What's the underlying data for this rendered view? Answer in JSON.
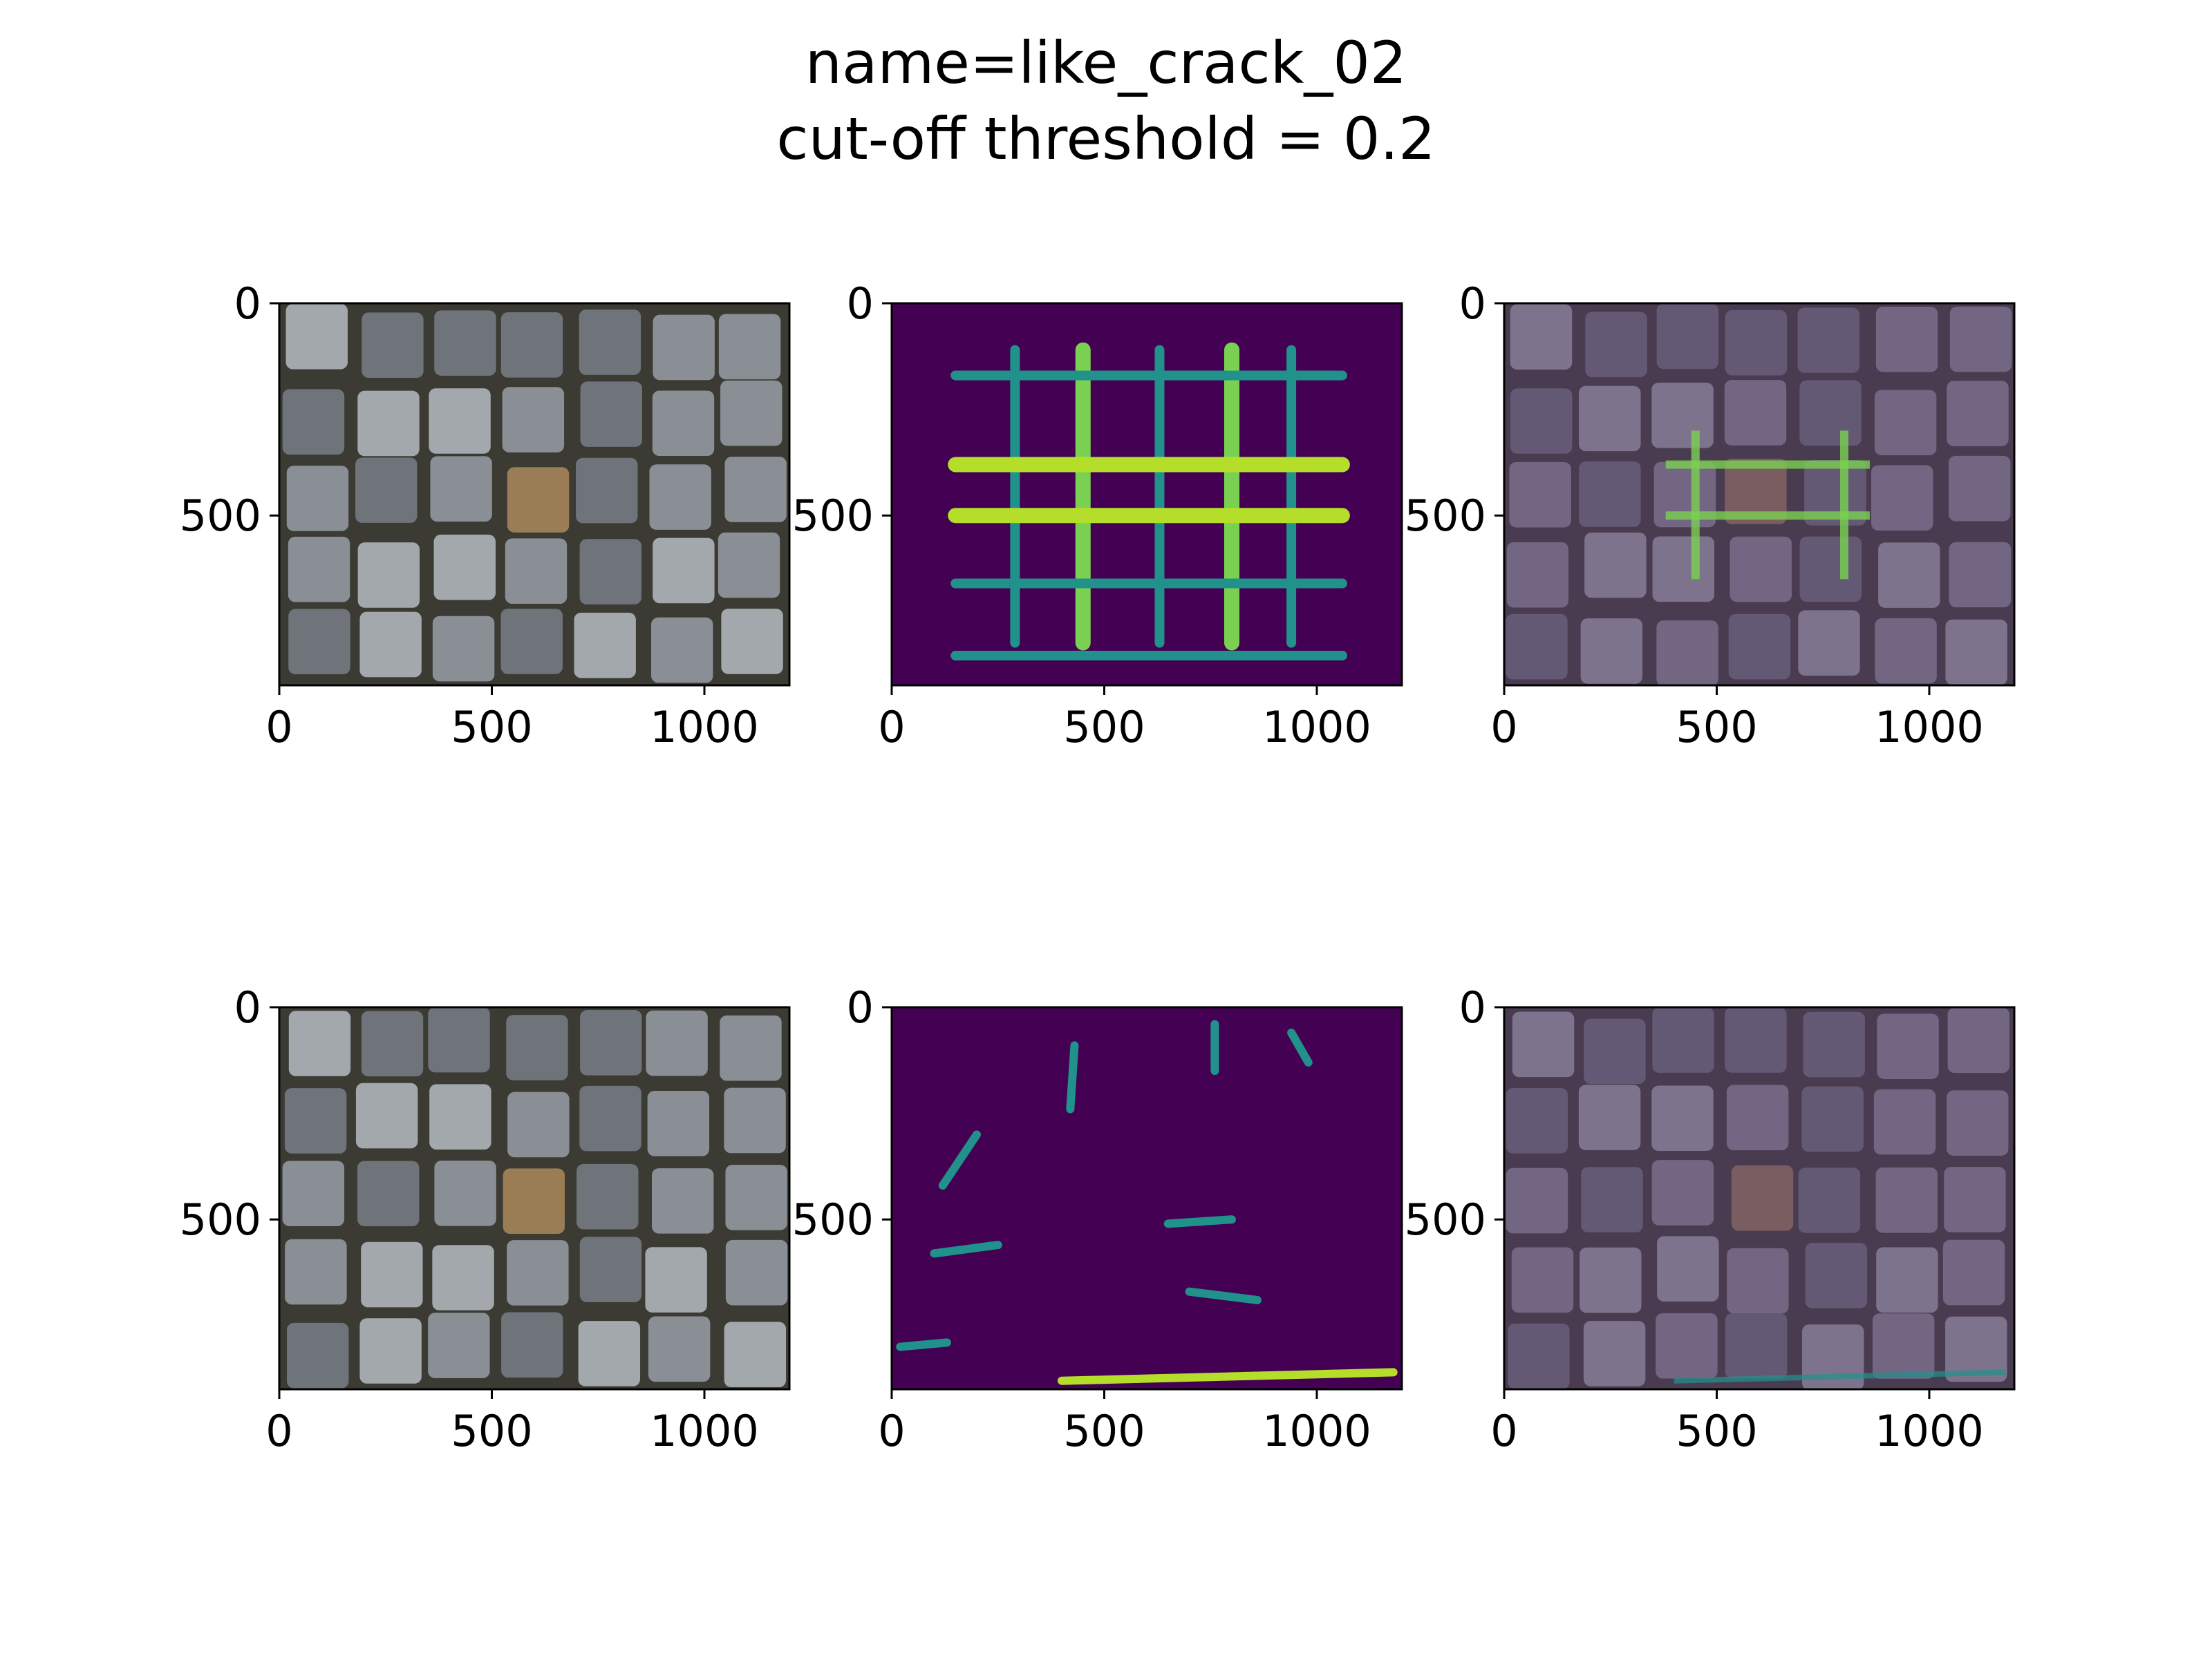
{
  "figure": {
    "title_line1": "name=like_crack_02",
    "title_line2": "cut-off threshold = 0.2"
  },
  "chart_data": {
    "type": "heatmap",
    "layout": "2 rows x 3 columns of image panels",
    "panels": [
      {
        "row": 1,
        "col": 1,
        "kind": "photo",
        "xticks": [
          "0",
          "500",
          "1000"
        ],
        "yticks": [
          "0",
          "500"
        ],
        "xlim": [
          0,
          1200
        ],
        "ylim": [
          900,
          0
        ]
      },
      {
        "row": 1,
        "col": 2,
        "kind": "heatmap",
        "colormap": "viridis",
        "xticks": [
          "0",
          "500",
          "1000"
        ],
        "yticks": [
          "0",
          "500"
        ],
        "xlim": [
          0,
          1200
        ],
        "ylim": [
          900,
          0
        ]
      },
      {
        "row": 1,
        "col": 3,
        "kind": "overlay",
        "xticks": [
          "0",
          "500",
          "1000"
        ],
        "yticks": [
          "0",
          "500"
        ],
        "xlim": [
          0,
          1200
        ],
        "ylim": [
          900,
          0
        ]
      },
      {
        "row": 2,
        "col": 1,
        "kind": "photo",
        "xticks": [
          "0",
          "500",
          "1000"
        ],
        "yticks": [
          "0",
          "500"
        ],
        "xlim": [
          0,
          1200
        ],
        "ylim": [
          900,
          0
        ]
      },
      {
        "row": 2,
        "col": 2,
        "kind": "heatmap",
        "colormap": "viridis",
        "xticks": [
          "0",
          "500",
          "1000"
        ],
        "yticks": [
          "0",
          "500"
        ],
        "xlim": [
          0,
          1200
        ],
        "ylim": [
          900,
          0
        ]
      },
      {
        "row": 2,
        "col": 3,
        "kind": "overlay",
        "xticks": [
          "0",
          "500",
          "1000"
        ],
        "yticks": [
          "0",
          "500"
        ],
        "xlim": [
          0,
          1200
        ],
        "ylim": [
          900,
          0
        ]
      }
    ],
    "colors": {
      "viridis_low": "#440154",
      "viridis_mid": "#21918c",
      "viridis_high": "#fde725",
      "stone_grey": "#8a8f96",
      "stone_tan": "#9a7d55",
      "grout": "#3b3a33",
      "overlay_tint": "#5a3d6e"
    }
  }
}
